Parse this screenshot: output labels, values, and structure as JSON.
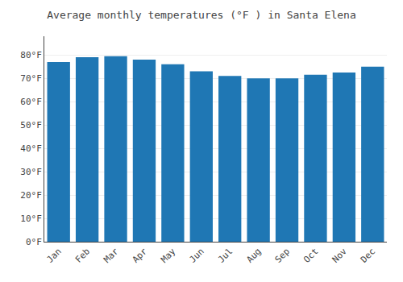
{
  "chart_data": {
    "type": "bar",
    "title": "Average monthly temperatures (°F ) in Santa Elena",
    "categories": [
      "Jan",
      "Feb",
      "Mar",
      "Apr",
      "May",
      "Jun",
      "Jul",
      "Aug",
      "Sep",
      "Oct",
      "Nov",
      "Dec"
    ],
    "values": [
      77,
      79,
      79.5,
      78,
      76,
      73,
      71,
      70,
      70,
      71.5,
      72.5,
      75
    ],
    "ylim": [
      0,
      88
    ],
    "yticks": [
      {
        "value": 0,
        "label": "0°F"
      },
      {
        "value": 10,
        "label": "10°F"
      },
      {
        "value": 20,
        "label": "20°F"
      },
      {
        "value": 30,
        "label": "30°F"
      },
      {
        "value": 40,
        "label": "40°F"
      },
      {
        "value": 50,
        "label": "50°F"
      },
      {
        "value": 60,
        "label": "60°F"
      },
      {
        "value": 70,
        "label": "70°F"
      },
      {
        "value": 80,
        "label": "80°F"
      }
    ],
    "grid": true
  }
}
